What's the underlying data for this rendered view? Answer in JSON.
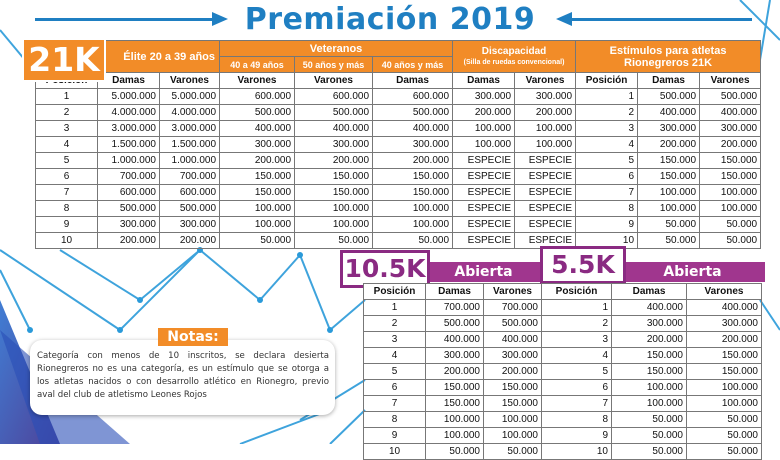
{
  "title": "Premiación 2019",
  "badge_21k": "21K",
  "table_21k": {
    "group_headers": {
      "elite": "Élite 20 a 39 años",
      "veteranos": "Veteranos",
      "discapacidad": "Discapacidad",
      "discapacidad_sub": "(Silla de ruedas convencional)",
      "estimulos": "Estímulos para atletas Rionegreros 21K"
    },
    "sub_headers": {
      "v40": "40 a 49 años",
      "v50": "50 años y más",
      "v40b": "40 años y más"
    },
    "columns": [
      "Posición",
      "Damas",
      "Varones",
      "Varones",
      "Varones",
      "Damas",
      "Damas",
      "Varones",
      "Posición",
      "Damas",
      "Varones"
    ],
    "rows": [
      [
        "1",
        "5.000.000",
        "5.000.000",
        "600.000",
        "600.000",
        "600.000",
        "300.000",
        "300.000",
        "1",
        "500.000",
        "500.000"
      ],
      [
        "2",
        "4.000.000",
        "4.000.000",
        "500.000",
        "500.000",
        "500.000",
        "200.000",
        "200.000",
        "2",
        "400.000",
        "400.000"
      ],
      [
        "3",
        "3.000.000",
        "3.000.000",
        "400.000",
        "400.000",
        "400.000",
        "100.000",
        "100.000",
        "3",
        "300.000",
        "300.000"
      ],
      [
        "4",
        "1.500.000",
        "1.500.000",
        "300.000",
        "300.000",
        "300.000",
        "100.000",
        "100.000",
        "4",
        "200.000",
        "200.000"
      ],
      [
        "5",
        "1.000.000",
        "1.000.000",
        "200.000",
        "200.000",
        "200.000",
        "ESPECIE",
        "ESPECIE",
        "5",
        "150.000",
        "150.000"
      ],
      [
        "6",
        "700.000",
        "700.000",
        "150.000",
        "150.000",
        "150.000",
        "ESPECIE",
        "ESPECIE",
        "6",
        "150.000",
        "150.000"
      ],
      [
        "7",
        "600.000",
        "600.000",
        "150.000",
        "150.000",
        "150.000",
        "ESPECIE",
        "ESPECIE",
        "7",
        "100.000",
        "100.000"
      ],
      [
        "8",
        "500.000",
        "500.000",
        "100.000",
        "100.000",
        "100.000",
        "ESPECIE",
        "ESPECIE",
        "8",
        "100.000",
        "100.000"
      ],
      [
        "9",
        "300.000",
        "300.000",
        "100.000",
        "100.000",
        "100.000",
        "ESPECIE",
        "ESPECIE",
        "9",
        "50.000",
        "50.000"
      ],
      [
        "10",
        "200.000",
        "200.000",
        "50.000",
        "50.000",
        "50.000",
        "ESPECIE",
        "ESPECIE",
        "10",
        "50.000",
        "50.000"
      ]
    ]
  },
  "badge_105k": "10.5K",
  "band_105k": "Abierta",
  "table_105k": {
    "columns": [
      "Posición",
      "Damas",
      "Varones"
    ],
    "rows": [
      [
        "1",
        "700.000",
        "700.000"
      ],
      [
        "2",
        "500.000",
        "500.000"
      ],
      [
        "3",
        "400.000",
        "400.000"
      ],
      [
        "4",
        "300.000",
        "300.000"
      ],
      [
        "5",
        "200.000",
        "200.000"
      ],
      [
        "6",
        "150.000",
        "150.000"
      ],
      [
        "7",
        "150.000",
        "150.000"
      ],
      [
        "8",
        "100.000",
        "100.000"
      ],
      [
        "9",
        "100.000",
        "100.000"
      ],
      [
        "10",
        "50.000",
        "50.000"
      ]
    ]
  },
  "badge_55k": "5.5K",
  "band_55k": "Abierta",
  "table_55k": {
    "columns": [
      "Posición",
      "Damas",
      "Varones"
    ],
    "rows": [
      [
        "1",
        "400.000",
        "400.000"
      ],
      [
        "2",
        "300.000",
        "300.000"
      ],
      [
        "3",
        "200.000",
        "200.000"
      ],
      [
        "4",
        "150.000",
        "150.000"
      ],
      [
        "5",
        "150.000",
        "150.000"
      ],
      [
        "6",
        "100.000",
        "100.000"
      ],
      [
        "7",
        "100.000",
        "100.000"
      ],
      [
        "8",
        "50.000",
        "50.000"
      ],
      [
        "9",
        "50.000",
        "50.000"
      ],
      [
        "10",
        "50.000",
        "50.000"
      ]
    ]
  },
  "notes": {
    "title": "Notas:",
    "text": "Categoría con menos de 10 inscritos, se declara desierta Rionegreros no es una categoría, es un estímulo que se otorga a los atletas nacidos o con desarrollo atlético en Rionegro, previo aval del club de atletismo Leones Rojos"
  },
  "colors": {
    "blue": "#1f7fc2",
    "orange": "#f28c28",
    "purple": "#a0368e"
  }
}
